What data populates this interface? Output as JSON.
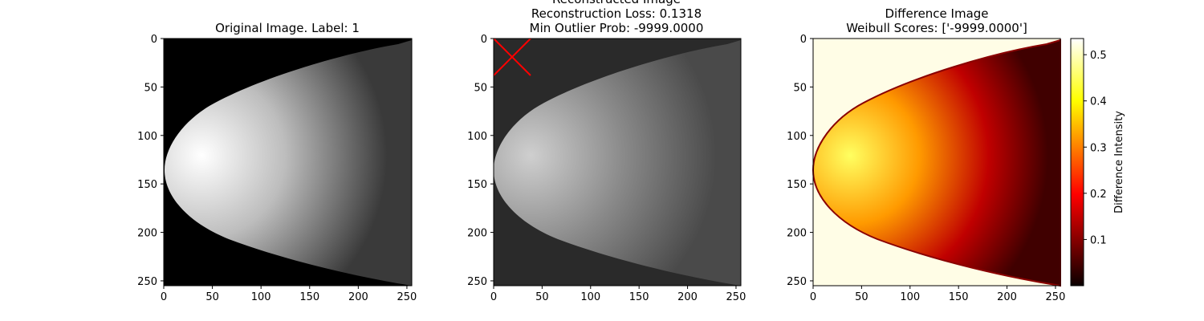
{
  "chart_data": [
    {
      "type": "image",
      "title_lines": [
        "Original Image. Label: 1"
      ],
      "xlim": [
        0,
        255
      ],
      "ylim": [
        255,
        0
      ],
      "xticks": [
        0,
        50,
        100,
        150,
        200,
        250
      ],
      "yticks": [
        0,
        50,
        100,
        150,
        200,
        250
      ],
      "colormap": "gray",
      "content": "mammogram"
    },
    {
      "type": "image",
      "title_lines": [
        "Reconstructed Image",
        "Reconstruction Loss: 0.1318",
        "Min Outlier Prob: -9999.0000"
      ],
      "xlim": [
        0,
        255
      ],
      "ylim": [
        255,
        0
      ],
      "xticks": [
        0,
        50,
        100,
        150,
        200,
        250
      ],
      "yticks": [
        0,
        50,
        100,
        150,
        200,
        250
      ],
      "colormap": "gray",
      "content": "reconstructed mammogram",
      "marker": {
        "shape": "x",
        "color": "#ff0000",
        "x": [
          0,
          37
        ],
        "y": [
          0,
          38
        ]
      }
    },
    {
      "type": "heatmap",
      "title_lines": [
        "Difference Image",
        "Weibull Scores: ['-9999.0000']"
      ],
      "xlim": [
        0,
        255
      ],
      "ylim": [
        255,
        0
      ],
      "xticks": [
        0,
        50,
        100,
        150,
        200,
        250
      ],
      "yticks": [
        0,
        50,
        100,
        150,
        200,
        250
      ],
      "colormap": "hot",
      "colorbar": {
        "label": "Difference Intensity",
        "range": [
          0.0,
          0.535
        ],
        "ticks": [
          0.1,
          0.2,
          0.3,
          0.4,
          0.5
        ]
      }
    }
  ]
}
